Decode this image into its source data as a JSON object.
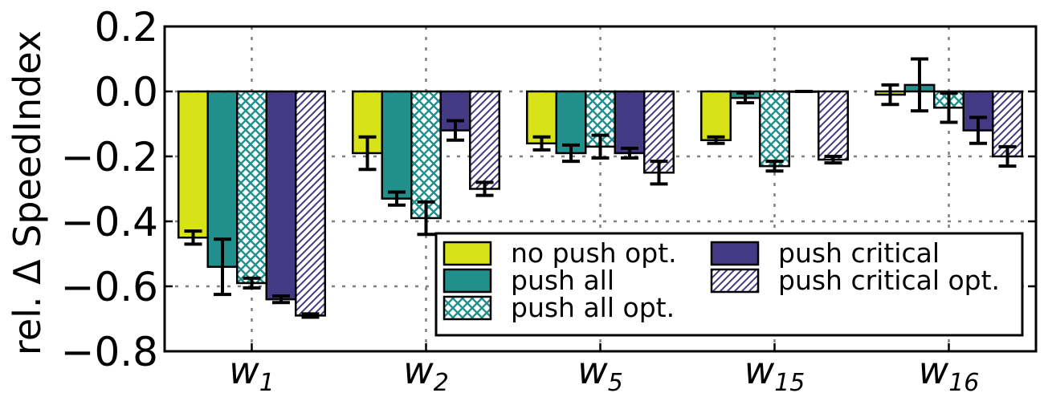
{
  "chart_data": {
    "type": "bar",
    "title": "",
    "xlabel": "",
    "ylabel": "rel. Δ SpeedIndex",
    "ylim": [
      -0.8,
      0.2
    ],
    "yticks": [
      0.2,
      0.0,
      -0.2,
      -0.4,
      -0.6,
      -0.8
    ],
    "ytick_labels": [
      "0.2",
      "0.0",
      "−0.2",
      "−0.4",
      "−0.6",
      "−0.8"
    ],
    "grid": true,
    "legend_position": "lower-right",
    "legend_columns": 2,
    "categories": [
      {
        "base": "w",
        "sub": "1"
      },
      {
        "base": "w",
        "sub": "2"
      },
      {
        "base": "w",
        "sub": "5"
      },
      {
        "base": "w",
        "sub": "15"
      },
      {
        "base": "w",
        "sub": "16"
      }
    ],
    "series": [
      {
        "name": "no push opt.",
        "color": "#d8e219",
        "pattern": "solid",
        "values": [
          -0.45,
          -0.19,
          -0.16,
          -0.15,
          -0.01
        ],
        "errors": [
          0.02,
          0.05,
          0.02,
          0.01,
          0.03
        ]
      },
      {
        "name": "push all",
        "color": "#21908d",
        "pattern": "solid",
        "values": [
          -0.54,
          -0.33,
          -0.19,
          -0.02,
          0.02
        ],
        "errors": [
          0.085,
          0.02,
          0.025,
          0.015,
          0.08
        ]
      },
      {
        "name": "push all opt.",
        "color": "#21908d",
        "pattern": "crosshatch",
        "values": [
          -0.59,
          -0.39,
          -0.17,
          -0.23,
          -0.05
        ],
        "errors": [
          0.015,
          0.05,
          0.035,
          0.015,
          0.045
        ]
      },
      {
        "name": "push critical",
        "color": "#443a83",
        "pattern": "solid",
        "values": [
          -0.64,
          -0.12,
          -0.19,
          0.0,
          -0.12
        ],
        "errors": [
          0.01,
          0.03,
          0.015,
          0.0,
          0.04
        ]
      },
      {
        "name": "push critical opt.",
        "color": "#443a83",
        "pattern": "diagonal",
        "values": [
          -0.69,
          -0.3,
          -0.25,
          -0.21,
          -0.2
        ],
        "errors": [
          0.005,
          0.02,
          0.035,
          0.01,
          0.03
        ]
      }
    ],
    "error_values_second_point_override": {
      "note": ""
    }
  }
}
